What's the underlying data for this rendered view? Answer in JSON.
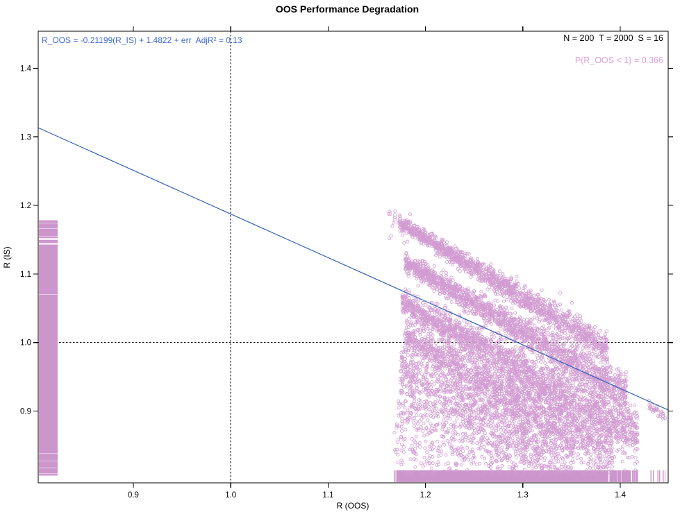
{
  "colors": {
    "plum_text": "#DDA0DD",
    "plum_point": "#D29CD2",
    "plum_rug": "#CC96CC",
    "blue_text": "#3F6BD0",
    "blue_line": "#3060B8",
    "axis": "#000000"
  },
  "annotations": {
    "equation": "R_OOS = -0.21199(R_IS) + 1.4822 + err  AdjR² = 0.13",
    "counts": "N = 200  T = 2000  S = 16",
    "probability": "P(R_OOS < 1) = 0.366"
  },
  "chart_data": {
    "type": "scatter",
    "title": "OOS Performance Degradation",
    "xlabel": "R (OOS)",
    "ylabel": "R (IS)",
    "grid": false,
    "axes": {
      "x": {
        "range": [
          0.8023,
          1.4492
        ],
        "ticks": [
          0.9,
          1.0,
          1.1,
          1.2,
          1.3,
          1.4
        ],
        "tick_labels": [
          "0.9",
          "1.0",
          "1.1",
          "1.2",
          "1.3",
          "1.4"
        ]
      },
      "y": {
        "range": [
          0.7952,
          1.4541
        ],
        "ticks": [
          0.9,
          1.0,
          1.1,
          1.2,
          1.3,
          1.4
        ],
        "tick_labels": [
          "0.9",
          "1.0",
          "1.1",
          "1.2",
          "1.3",
          "1.4"
        ]
      }
    },
    "reference_lines": [
      {
        "axis": "x",
        "value": 1.0,
        "style": "dotted"
      },
      {
        "axis": "y",
        "value": 1.0,
        "style": "dotted"
      }
    ],
    "regression_line": {
      "slope": -0.21199,
      "intercept": 1.4822,
      "adj_r2": 0.13,
      "draw": {
        "x0": 0.8023,
        "y0": 1.3133,
        "x1": 1.4492,
        "y1": 0.9015
      }
    },
    "summary": {
      "N": 200,
      "T": 2000,
      "S": 16,
      "p_R_OOS_lt_1": 0.366
    },
    "scatter": {
      "marker": "open-circle",
      "radius_px": 2.1,
      "seed": 42,
      "clip": {
        "x": [
          1.155,
          1.447
        ],
        "y": [
          0.806,
          1.2
        ]
      },
      "bands": [
        {
          "x0": 1.162,
          "x1": 1.186,
          "y0": 1.18,
          "slope": -0.8,
          "sd": 0.012,
          "fan": 0,
          "n": 25
        },
        {
          "x0": 1.173,
          "x1": 1.387,
          "y0": 1.175,
          "slope": -0.86,
          "sd": 0.0045,
          "fan": 1.6,
          "n": 1500
        },
        {
          "x0": 1.179,
          "x1": 1.406,
          "y0": 1.117,
          "slope": -0.84,
          "sd": 0.006,
          "fan": 1.6,
          "n": 1800
        },
        {
          "x0": 1.176,
          "x1": 1.418,
          "y0": 1.058,
          "slope": -0.8,
          "sd": 0.0085,
          "fan": 1.5,
          "n": 2000
        },
        {
          "x0": 1.178,
          "x1": 1.392,
          "y0": 1.01,
          "slope": -0.79,
          "sd": 0.011,
          "fan": 1.4,
          "n": 1600
        },
        {
          "x0": 1.174,
          "x1": 1.352,
          "y0": 0.962,
          "slope": -0.76,
          "sd": 0.014,
          "fan": 1.3,
          "n": 900
        },
        {
          "x0": 1.172,
          "x1": 1.33,
          "y0": 0.912,
          "slope": -0.66,
          "sd": 0.018,
          "fan": 1.2,
          "n": 450
        },
        {
          "x0": 1.168,
          "x1": 1.32,
          "y0": 0.872,
          "slope": -0.34,
          "sd": 0.028,
          "fan": 1.0,
          "n": 240
        },
        {
          "x0": 1.17,
          "x1": 1.3,
          "y0": 0.838,
          "slope": -0.14,
          "sd": 0.017,
          "fan": 1.0,
          "n": 85
        },
        {
          "x0": 1.429,
          "x1": 1.446,
          "y0": 0.906,
          "slope": -0.85,
          "sd": 0.0035,
          "fan": 0,
          "n": 30
        }
      ]
    },
    "rugs": {
      "left": {
        "data": "y-marginal",
        "span": [
          0.797,
          1.179
        ]
      },
      "bottom": {
        "data": "x-marginal",
        "span": [
          1.162,
          1.444
        ]
      }
    },
    "legend": "none"
  }
}
